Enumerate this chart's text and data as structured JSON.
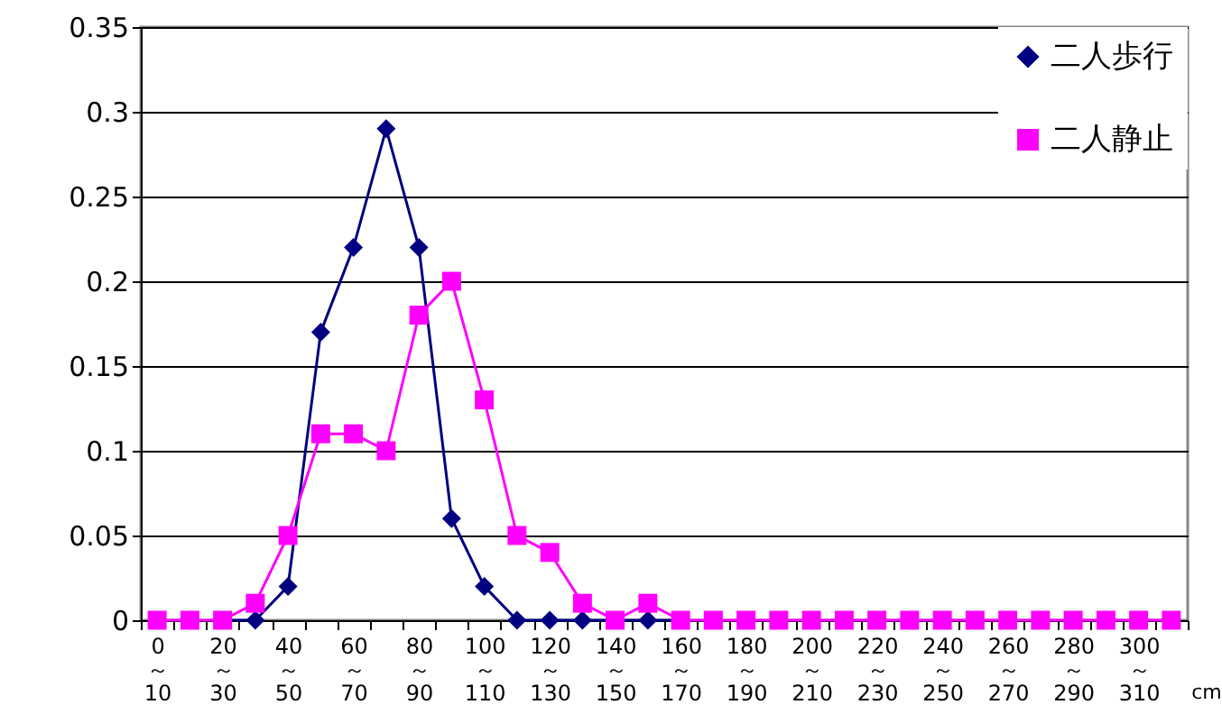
{
  "chart_data": {
    "type": "line",
    "categories": [
      "0～10",
      null,
      "20～30",
      null,
      "40～50",
      null,
      "60～70",
      null,
      "80～90",
      null,
      "100～110",
      null,
      "120～130",
      null,
      "140～150",
      null,
      "160～170",
      null,
      "180～190",
      null,
      "200～210",
      null,
      "220～230",
      null,
      "240～250",
      null,
      "260～270",
      null,
      "280～290",
      null,
      "300～310",
      null
    ],
    "xlabel": "cm",
    "series": [
      {
        "name": "二人歩行",
        "color": "#000080",
        "marker": "diamond",
        "values": [
          null,
          null,
          0,
          0,
          0.02,
          0.17,
          0.22,
          0.29,
          0.22,
          0.06,
          0.02,
          0,
          0,
          0,
          0,
          0,
          0,
          null,
          null,
          null,
          null,
          null,
          null,
          null,
          null,
          null,
          null,
          null,
          null,
          null,
          null,
          null
        ]
      },
      {
        "name": "二人静止",
        "color": "#ff00ff",
        "marker": "square",
        "values": [
          0,
          0,
          0,
          0.01,
          0.05,
          0.11,
          0.11,
          0.1,
          0.18,
          0.2,
          0.13,
          0.05,
          0.04,
          0.01,
          0,
          0.01,
          0,
          0,
          0,
          0,
          0,
          0,
          0,
          0,
          0,
          0,
          0,
          0,
          0,
          0,
          0,
          0
        ]
      }
    ],
    "ylim": [
      0,
      0.35
    ],
    "yticks": [
      0,
      0.05,
      0.1,
      0.15,
      0.2,
      0.25,
      0.3,
      0.35
    ],
    "grid": "y",
    "legend": "top right"
  }
}
